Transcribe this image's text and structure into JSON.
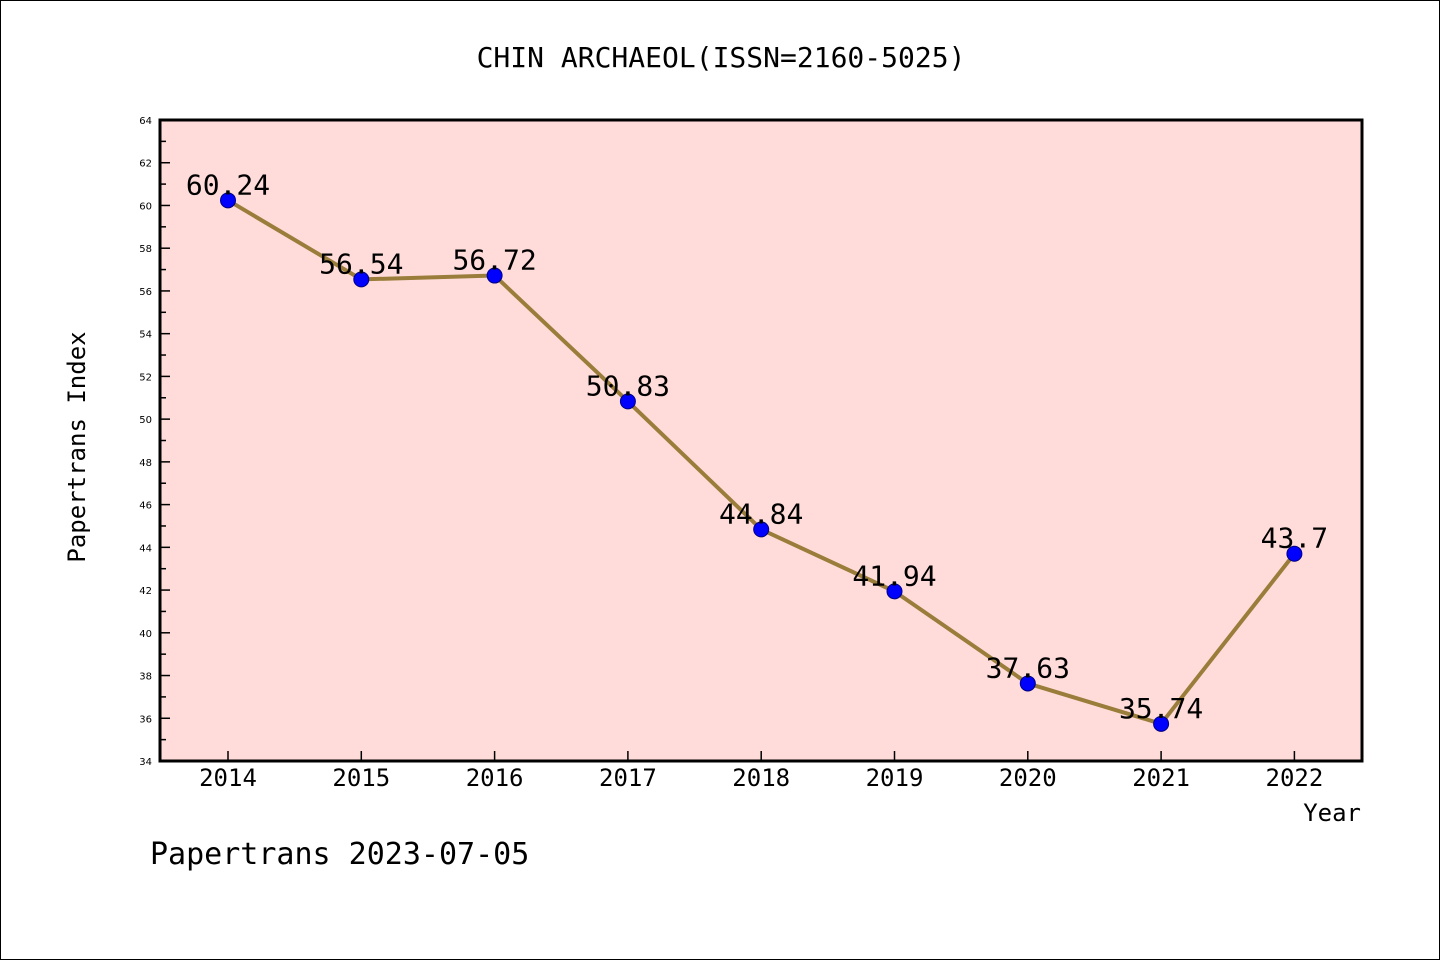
{
  "footer": {
    "text": "Papertrans 2023-07-05"
  },
  "chart_data": {
    "type": "line",
    "title": "CHIN ARCHAEOL(ISSN=2160-5025)",
    "xlabel": "Year",
    "ylabel": "Papertrans Index",
    "categories": [
      "2014",
      "2015",
      "2016",
      "2017",
      "2018",
      "2019",
      "2020",
      "2021",
      "2022"
    ],
    "values": [
      60.24,
      56.54,
      56.72,
      50.83,
      44.84,
      41.94,
      37.63,
      35.74,
      43.7
    ],
    "data_labels": [
      "60.24",
      "56.54",
      "56.72",
      "50.83",
      "44.84",
      "41.94",
      "37.63",
      "35.74",
      "43.7"
    ],
    "ylim": [
      34,
      64
    ],
    "yticks": [
      "34",
      "36",
      "38",
      "40",
      "42",
      "44",
      "46",
      "48",
      "50",
      "52",
      "54",
      "56",
      "58",
      "60",
      "62",
      "64"
    ],
    "grid": false,
    "legend": "none",
    "colors": {
      "plot_background": "#ffdcda",
      "line": "#9a7d3a",
      "marker": "#0000ff",
      "marker_edge": "#000080"
    }
  }
}
